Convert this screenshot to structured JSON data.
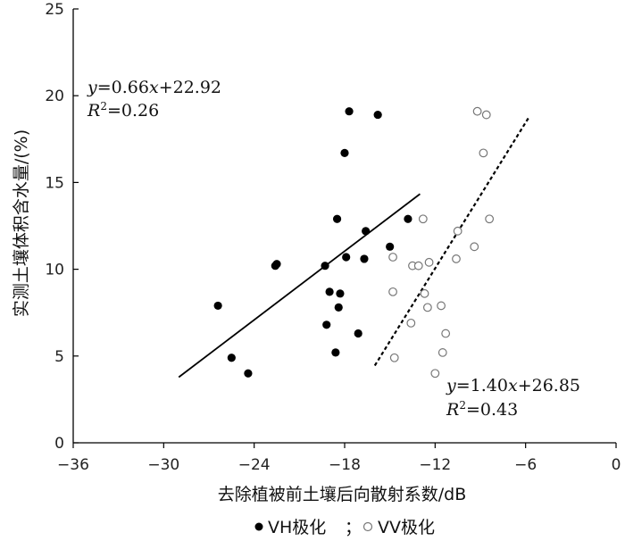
{
  "chart_data": {
    "type": "scatter",
    "xlabel": "去除植被前土壤后向散射系数/dB",
    "ylabel": "实测土壤体积含水量/(%)",
    "xlim": [
      -36,
      0
    ],
    "ylim": [
      0,
      25
    ],
    "xticks": [
      -36,
      -30,
      -24,
      -18,
      -12,
      -6,
      0
    ],
    "yticks": [
      0,
      5,
      10,
      15,
      20,
      25
    ],
    "legend_position": "bottom-center",
    "legend_separator": "；",
    "series": [
      {
        "name": "VH极化",
        "marker": "filled-circle",
        "color": "#000000",
        "points": [
          [
            -26.4,
            7.9
          ],
          [
            -25.5,
            4.9
          ],
          [
            -24.4,
            4.0
          ],
          [
            -22.6,
            10.2
          ],
          [
            -22.5,
            10.3
          ],
          [
            -19.3,
            10.2
          ],
          [
            -19.2,
            6.8
          ],
          [
            -19.0,
            8.7
          ],
          [
            -18.6,
            5.2
          ],
          [
            -18.5,
            12.9
          ],
          [
            -18.4,
            7.8
          ],
          [
            -18.3,
            8.6
          ],
          [
            -18.0,
            16.7
          ],
          [
            -17.9,
            10.7
          ],
          [
            -17.7,
            19.1
          ],
          [
            -17.1,
            6.3
          ],
          [
            -16.7,
            10.6
          ],
          [
            -16.6,
            12.2
          ],
          [
            -15.8,
            18.9
          ],
          [
            -15.0,
            11.3
          ],
          [
            -13.8,
            12.9
          ]
        ]
      },
      {
        "name": "VV极化",
        "marker": "open-circle",
        "color": "#777777",
        "points": [
          [
            -14.8,
            10.7
          ],
          [
            -14.8,
            8.7
          ],
          [
            -14.7,
            4.9
          ],
          [
            -13.6,
            6.9
          ],
          [
            -13.5,
            10.2
          ],
          [
            -13.1,
            10.2
          ],
          [
            -12.8,
            12.9
          ],
          [
            -12.7,
            8.6
          ],
          [
            -12.5,
            7.8
          ],
          [
            -12.4,
            10.4
          ],
          [
            -12.0,
            4.0
          ],
          [
            -11.6,
            7.9
          ],
          [
            -11.5,
            5.2
          ],
          [
            -11.3,
            6.3
          ],
          [
            -10.6,
            10.6
          ],
          [
            -10.5,
            12.2
          ],
          [
            -9.4,
            11.3
          ],
          [
            -9.2,
            19.1
          ],
          [
            -8.8,
            16.7
          ],
          [
            -8.6,
            18.9
          ],
          [
            -8.4,
            12.9
          ]
        ]
      }
    ],
    "fits": [
      {
        "series": "VH极化",
        "style": "solid",
        "slope": 0.66,
        "intercept": 22.92,
        "x_range": [
          -29,
          -13
        ],
        "eq_prefix": "y",
        "eq_equals": "=0.66",
        "eq_var": "x",
        "eq_tail": "+22.92",
        "r2_prefix": "R",
        "r2_sup": "2",
        "r2_tail": "=0.26"
      },
      {
        "series": "VV极化",
        "style": "dashed",
        "slope": 1.4,
        "intercept": 26.85,
        "x_range": [
          -16,
          -5.8
        ],
        "eq_prefix": "y",
        "eq_equals": "=1.40",
        "eq_var": "x",
        "eq_tail": "+26.85",
        "r2_prefix": "R",
        "r2_sup": "2",
        "r2_tail": "=0.43"
      }
    ]
  }
}
